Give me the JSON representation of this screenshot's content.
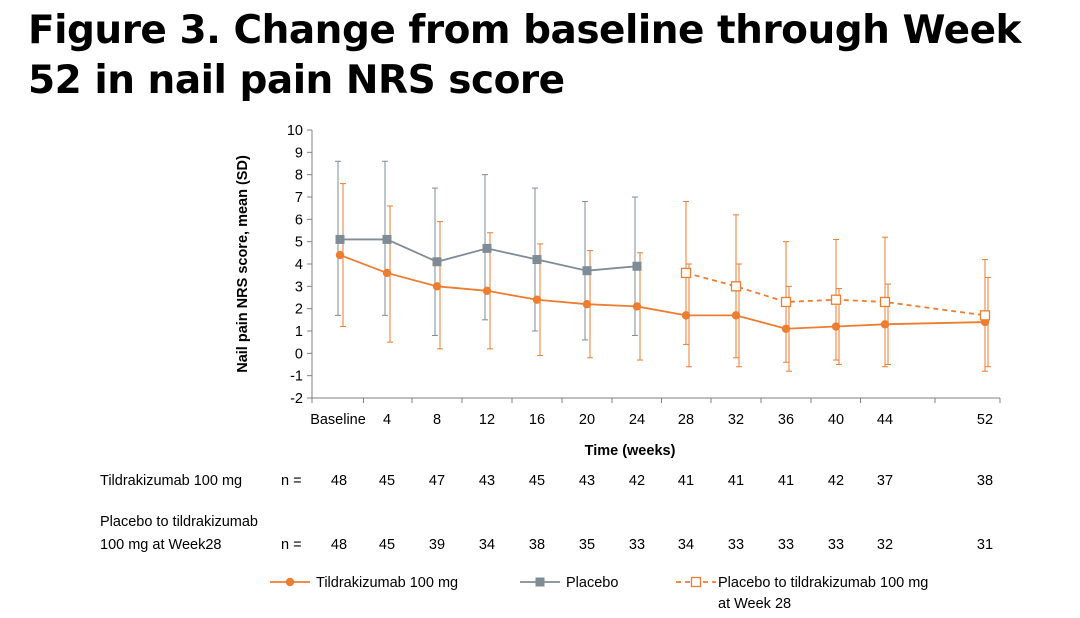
{
  "title": "Figure 3. Change from baseline through Week 52 in nail pain NRS score",
  "chart_data": {
    "type": "line",
    "xlabel": "Time (weeks)",
    "ylabel": "Nail pain NRS score, mean (SD)",
    "ylim": [
      -2,
      10
    ],
    "yticks": [
      -2,
      -1,
      0,
      1,
      2,
      3,
      4,
      5,
      6,
      7,
      8,
      9,
      10
    ],
    "x_ticks": [
      {
        "label": "Baseline",
        "value": 0
      },
      {
        "label": "4",
        "value": 4
      },
      {
        "label": "8",
        "value": 8
      },
      {
        "label": "12",
        "value": 12
      },
      {
        "label": "16",
        "value": 16
      },
      {
        "label": "20",
        "value": 20
      },
      {
        "label": "24",
        "value": 24
      },
      {
        "label": "28",
        "value": 28
      },
      {
        "label": "32",
        "value": 32
      },
      {
        "label": "36",
        "value": 36
      },
      {
        "label": "40",
        "value": 40
      },
      {
        "label": "44",
        "value": 44
      },
      {
        "label": "52",
        "value": 52
      }
    ],
    "grid": false,
    "series": [
      {
        "name": "Tildrakizumab 100 mg",
        "color": "#ed7d31",
        "marker": "circle-filled",
        "line": "solid",
        "x": [
          0,
          4,
          8,
          12,
          16,
          20,
          24,
          28,
          32,
          36,
          40,
          44,
          52
        ],
        "mean": [
          4.4,
          3.6,
          3.0,
          2.8,
          2.4,
          2.2,
          2.1,
          1.7,
          1.7,
          1.1,
          1.2,
          1.3,
          1.4
        ],
        "upper": [
          7.6,
          6.6,
          5.9,
          5.4,
          4.9,
          4.6,
          4.5,
          4.0,
          4.0,
          3.0,
          2.9,
          3.1,
          3.4
        ],
        "lower": [
          1.2,
          0.5,
          0.2,
          0.2,
          -0.1,
          -0.2,
          -0.3,
          -0.6,
          -0.6,
          -0.8,
          -0.5,
          -0.5,
          -0.6
        ]
      },
      {
        "name": "Placebo",
        "color": "#7f8c96",
        "marker": "square-filled",
        "line": "solid",
        "x": [
          0,
          4,
          8,
          12,
          16,
          20,
          24
        ],
        "mean": [
          5.1,
          5.1,
          4.1,
          4.7,
          4.2,
          3.7,
          3.9
        ],
        "upper": [
          8.6,
          8.6,
          7.4,
          8.0,
          7.4,
          6.8,
          7.0
        ],
        "lower": [
          1.7,
          1.7,
          0.8,
          1.5,
          1.0,
          0.6,
          0.8
        ]
      },
      {
        "name": "Placebo to tildrakizumab 100 mg at Week 28",
        "color": "#ed7d31",
        "marker": "square-open",
        "line": "dashed",
        "x": [
          28,
          32,
          36,
          40,
          44,
          52
        ],
        "mean": [
          3.6,
          3.0,
          2.3,
          2.4,
          2.3,
          1.7
        ],
        "upper": [
          6.8,
          6.2,
          5.0,
          5.1,
          5.2,
          4.2
        ],
        "lower": [
          0.4,
          -0.2,
          -0.4,
          -0.3,
          -0.6,
          -0.8
        ]
      }
    ],
    "n_at_risk": {
      "n_label": "n =",
      "rows": [
        {
          "label_lines": [
            "Tildrakizumab 100 mg"
          ],
          "values": [
            "48",
            "45",
            "47",
            "43",
            "45",
            "43",
            "42",
            "41",
            "41",
            "41",
            "42",
            "37",
            "38"
          ]
        },
        {
          "label_lines": [
            "Placebo to tildrakizumab",
            "100 mg at Week28"
          ],
          "values": [
            "48",
            "45",
            "39",
            "34",
            "38",
            "35",
            "33",
            "34",
            "33",
            "33",
            "33",
            "32",
            "31"
          ]
        }
      ]
    },
    "legend": {
      "position": "bottom",
      "entries": [
        {
          "label_lines": [
            "Tildrakizumab 100 mg"
          ]
        },
        {
          "label_lines": [
            "Placebo"
          ]
        },
        {
          "label_lines": [
            "Placebo to tildrakizumab 100 mg",
            "at Week 28"
          ]
        }
      ]
    }
  }
}
